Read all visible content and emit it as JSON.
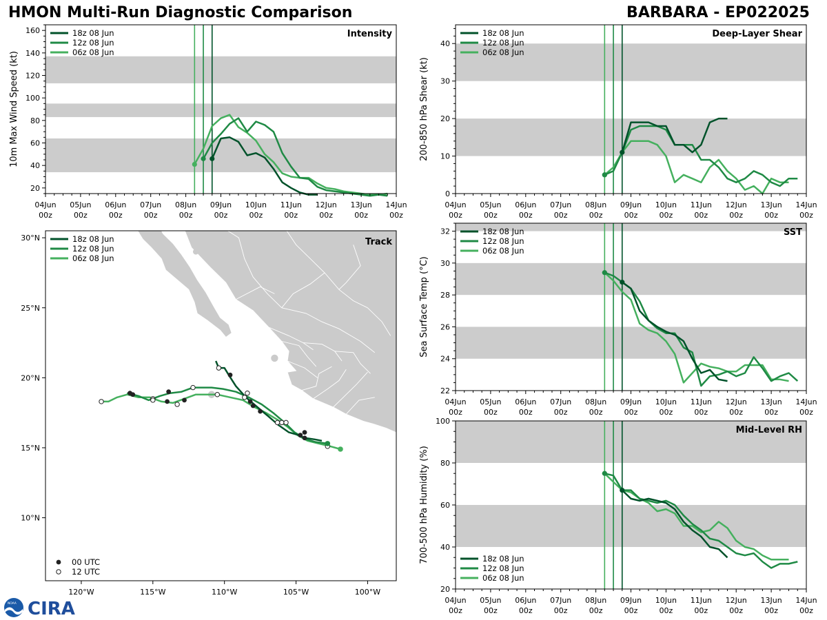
{
  "header": {
    "title": "HMON Multi-Run Diagnostic Comparison",
    "storm": "BARBARA - EP022025"
  },
  "logos": {
    "org": "CIRA",
    "emblem": "NOAA"
  },
  "colors": {
    "run18": "#00522a",
    "run12": "#1f8a45",
    "run06": "#45b05e",
    "band": "#cccccc"
  },
  "runs": [
    "18z 08 Jun",
    "12z 08 Jun",
    "06z 08 Jun"
  ],
  "time_ticks": [
    "04Jun",
    "05Jun",
    "06Jun",
    "07Jun",
    "08Jun",
    "09Jun",
    "10Jun",
    "11Jun",
    "12Jun",
    "13Jun",
    "14Jun"
  ],
  "time_sub": "00z",
  "init_lines": [
    4.25,
    4.5,
    4.75
  ],
  "chart_data": [
    {
      "id": "intensity",
      "type": "line",
      "title": "Intensity",
      "ylabel": "10m Max Wind Speed (kt)",
      "xlabel": "",
      "xlim": [
        0,
        10
      ],
      "ylim": [
        15,
        165
      ],
      "yticks": [
        20,
        40,
        60,
        80,
        100,
        120,
        140,
        160
      ],
      "bands": [
        [
          34,
          64
        ],
        [
          83,
          95
        ],
        [
          113,
          137
        ]
      ],
      "legend": "top-left",
      "series": [
        {
          "name": "18z 08 Jun",
          "x": [
            4.75,
            5.0,
            5.25,
            5.5,
            5.75,
            6.0,
            6.25,
            6.5,
            6.75,
            7.0,
            7.25,
            7.5,
            7.75
          ],
          "y": [
            46,
            64,
            65,
            61,
            49,
            51,
            47,
            37,
            25,
            20,
            16,
            14,
            14
          ]
        },
        {
          "name": "12z 08 Jun",
          "x": [
            4.5,
            4.75,
            5.0,
            5.25,
            5.5,
            5.75,
            6.0,
            6.25,
            6.5,
            6.75,
            7.0,
            7.25,
            7.5,
            7.75,
            8.0,
            8.25,
            8.5,
            8.75,
            9.0,
            9.25,
            9.5,
            9.75
          ],
          "y": [
            46,
            60,
            68,
            77,
            82,
            70,
            79,
            76,
            70,
            51,
            39,
            29,
            28,
            21,
            18,
            17,
            16,
            15,
            14,
            13,
            14,
            13
          ]
        },
        {
          "name": "06z 08 Jun",
          "x": [
            4.25,
            4.5,
            4.75,
            5.0,
            5.25,
            5.5,
            5.75,
            6.0,
            6.25,
            6.5,
            6.75,
            7.0,
            7.25,
            7.5,
            7.75,
            8.0,
            8.25,
            8.5,
            8.75,
            9.0,
            9.25,
            9.5,
            9.75
          ],
          "y": [
            41,
            55,
            75,
            82,
            85,
            74,
            69,
            62,
            50,
            43,
            33,
            30,
            29,
            29,
            24,
            20,
            19,
            17,
            16,
            15,
            14,
            14,
            15
          ]
        }
      ]
    },
    {
      "id": "shear",
      "type": "line",
      "title": "Deep-Layer Shear",
      "ylabel": "200-850 hPa Shear (kt)",
      "xlabel": "",
      "xlim": [
        0,
        10
      ],
      "ylim": [
        0,
        45
      ],
      "yticks": [
        0,
        10,
        20,
        30,
        40
      ],
      "bands": [
        [
          10,
          20
        ],
        [
          30,
          40
        ]
      ],
      "legend": "top-left",
      "series": [
        {
          "name": "18z 08 Jun",
          "x": [
            4.75,
            5.0,
            5.25,
            5.5,
            5.75,
            6.0,
            6.25,
            6.5,
            6.75,
            7.0,
            7.25,
            7.5,
            7.75
          ],
          "y": [
            11,
            19,
            19,
            19,
            18,
            18,
            13,
            13,
            11,
            13,
            19,
            20,
            20
          ]
        },
        {
          "name": "12z 08 Jun",
          "x": [
            4.25,
            4.5,
            4.75,
            5.0,
            5.25,
            5.5,
            5.75,
            6.0,
            6.25,
            6.5,
            6.75,
            7.0,
            7.25,
            7.5,
            7.75,
            8.0,
            8.25,
            8.5,
            8.75,
            9.0,
            9.25,
            9.5,
            9.75
          ],
          "y": [
            5,
            6,
            11,
            17,
            18,
            18,
            18,
            17,
            13,
            13,
            13,
            9,
            9,
            7,
            4,
            3,
            4,
            6,
            5,
            3,
            2,
            4,
            4
          ]
        },
        {
          "name": "06z 08 Jun",
          "x": [
            4.25,
            4.5,
            4.75,
            5.0,
            5.25,
            5.5,
            5.75,
            6.0,
            6.25,
            6.5,
            6.75,
            7.0,
            7.25,
            7.5,
            7.75,
            8.0,
            8.25,
            8.5,
            8.75,
            9.0,
            9.25,
            9.5
          ],
          "y": [
            5,
            7,
            11,
            14,
            14,
            14,
            13,
            10,
            3,
            5,
            4,
            3,
            7,
            9,
            6,
            4,
            1,
            2,
            0,
            4,
            3,
            3
          ]
        }
      ]
    },
    {
      "id": "sst",
      "type": "line",
      "title": "SST",
      "ylabel": "Sea Surface Temp (°C)",
      "xlabel": "",
      "xlim": [
        0,
        10
      ],
      "ylim": [
        22,
        32.5
      ],
      "yticks": [
        22,
        24,
        26,
        28,
        30,
        32
      ],
      "bands": [
        [
          24,
          26
        ],
        [
          28,
          30
        ],
        [
          32,
          32.5
        ]
      ],
      "legend": "top-left",
      "series": [
        {
          "name": "18z 08 Jun",
          "x": [
            4.75,
            5.0,
            5.25,
            5.5,
            5.75,
            6.0,
            6.25,
            6.5,
            6.75,
            7.0,
            7.25,
            7.5,
            7.75
          ],
          "y": [
            28.8,
            28.4,
            27.0,
            26.4,
            26.0,
            25.7,
            25.5,
            25.1,
            24.0,
            23.1,
            23.3,
            22.7,
            22.6
          ]
        },
        {
          "name": "12z 08 Jun",
          "x": [
            4.25,
            4.5,
            4.75,
            5.0,
            5.25,
            5.5,
            5.75,
            6.0,
            6.25,
            6.5,
            6.75,
            7.0,
            7.25,
            7.5,
            7.75,
            8.0,
            8.25,
            8.5,
            8.75,
            9.0,
            9.25,
            9.5,
            9.75
          ],
          "y": [
            29.4,
            29.2,
            28.8,
            28.4,
            27.6,
            26.4,
            25.9,
            25.6,
            25.6,
            24.7,
            24.4,
            22.3,
            22.9,
            23.0,
            23.2,
            22.9,
            23.1,
            24.1,
            23.4,
            22.6,
            22.9,
            23.1,
            22.6
          ]
        },
        {
          "name": "06z 08 Jun",
          "x": [
            4.25,
            4.5,
            4.75,
            5.0,
            5.25,
            5.5,
            5.75,
            6.0,
            6.25,
            6.5,
            6.75,
            7.0,
            7.25,
            7.5,
            7.75,
            8.0,
            8.25,
            8.5,
            8.75,
            9.0,
            9.25,
            9.5
          ],
          "y": [
            29.4,
            28.9,
            28.2,
            27.7,
            26.2,
            25.8,
            25.6,
            25.1,
            24.3,
            22.5,
            23.1,
            23.7,
            23.5,
            23.4,
            23.2,
            23.2,
            23.6,
            23.6,
            23.6,
            22.7,
            22.7,
            22.6
          ]
        }
      ]
    },
    {
      "id": "rh",
      "type": "line",
      "title": "Mid-Level RH",
      "ylabel": "700-500 hPa Humidity (%)",
      "xlabel": "",
      "xlim": [
        0,
        10
      ],
      "ylim": [
        20,
        100
      ],
      "yticks": [
        20,
        40,
        60,
        80,
        100
      ],
      "bands": [
        [
          40,
          60
        ],
        [
          80,
          100
        ]
      ],
      "legend": "bottom-left",
      "series": [
        {
          "name": "18z 08 Jun",
          "x": [
            4.75,
            5.0,
            5.25,
            5.5,
            5.75,
            6.0,
            6.25,
            6.5,
            6.75,
            7.0,
            7.25,
            7.5,
            7.75
          ],
          "y": [
            67,
            63,
            62,
            63,
            62,
            61,
            58,
            52,
            48,
            45,
            40,
            39,
            35
          ]
        },
        {
          "name": "12z 08 Jun",
          "x": [
            4.25,
            4.5,
            4.75,
            5.0,
            5.25,
            5.5,
            5.75,
            6.0,
            6.25,
            6.5,
            6.75,
            7.0,
            7.25,
            7.5,
            7.75,
            8.0,
            8.25,
            8.5,
            8.75,
            9.0,
            9.25,
            9.5,
            9.75
          ],
          "y": [
            75,
            74,
            67,
            67,
            63,
            62,
            61,
            62,
            60,
            55,
            51,
            48,
            44,
            43,
            40,
            37,
            36,
            37,
            33,
            30,
            32,
            32,
            33
          ]
        },
        {
          "name": "06z 08 Jun",
          "x": [
            4.25,
            4.5,
            4.75,
            5.0,
            5.25,
            5.5,
            5.75,
            6.0,
            6.25,
            6.5,
            6.75,
            7.0,
            7.25,
            7.5,
            7.75,
            8.0,
            8.25,
            8.5,
            8.75,
            9.0,
            9.25,
            9.5
          ],
          "y": [
            75,
            71,
            67,
            66,
            63,
            61,
            57,
            58,
            56,
            50,
            50,
            47,
            48,
            52,
            49,
            43,
            40,
            39,
            36,
            34,
            34,
            34
          ]
        }
      ]
    },
    {
      "id": "track",
      "type": "scatter",
      "title": "Track",
      "xlabel": "",
      "ylabel": "",
      "xlim": [
        -122.5,
        -98
      ],
      "ylim": [
        5.5,
        30.5
      ],
      "xticks": [
        -120,
        -115,
        -110,
        -105,
        -100
      ],
      "xtick_labels": [
        "120°W",
        "115°W",
        "110°W",
        "105°W",
        "100°W"
      ],
      "yticks": [
        10,
        15,
        20,
        25,
        30
      ],
      "ytick_labels": [
        "10°N",
        "15°N",
        "20°N",
        "25°N",
        "30°N"
      ],
      "legend": "top-left",
      "marker_legend": [
        "00 UTC",
        "12 UTC"
      ],
      "series": [
        {
          "name": "18z 08 Jun",
          "lon": [
            -110.6,
            -110.4,
            -110.0,
            -109.7,
            -109.2,
            -108.5,
            -107.7,
            -107.0,
            -106.2,
            -105.5,
            -104.8,
            -104.4,
            -103.7,
            -103.2
          ],
          "lat": [
            21.2,
            20.7,
            20.7,
            20.2,
            19.4,
            18.6,
            17.9,
            17.3,
            16.6,
            16.1,
            15.9,
            15.7,
            15.6,
            15.5
          ],
          "dot00": [
            [
              -109.6,
              20.2
            ],
            [
              -108.2,
              18.3
            ],
            [
              -104.7,
              15.9
            ],
            [
              -104.4,
              15.7
            ]
          ],
          "dot12": [
            [
              -110.4,
              20.7
            ]
          ]
        },
        {
          "name": "12z 08 Jun",
          "lon": [
            -102.8,
            -103.6,
            -104.3,
            -105.1,
            -105.8,
            -106.6,
            -107.4,
            -108.3,
            -109.2,
            -110.1,
            -110.9,
            -111.6,
            -112.2,
            -113.0,
            -113.8,
            -114.5,
            -115.3,
            -116.0,
            -116.4,
            -116.8
          ],
          "lat": [
            15.3,
            15.4,
            15.6,
            16.1,
            16.8,
            17.5,
            18.1,
            18.6,
            19.0,
            19.2,
            19.3,
            19.3,
            19.3,
            19.0,
            18.9,
            18.7,
            18.4,
            18.7,
            18.8,
            18.9
          ],
          "dot00": [
            [
              -102.8,
              15.3
            ],
            [
              -104.4,
              16.1
            ],
            [
              -107.5,
              17.6
            ],
            [
              -108.0,
              18.0
            ],
            [
              -112.8,
              18.4
            ],
            [
              -113.9,
              19.0
            ],
            [
              -116.4,
              18.8
            ],
            [
              -116.6,
              18.9
            ]
          ],
          "dot12": [
            [
              -106.0,
              16.8
            ],
            [
              -108.4,
              18.9
            ],
            [
              -112.2,
              19.3
            ],
            [
              -115.0,
              18.5
            ]
          ]
        },
        {
          "name": "06z 08 Jun",
          "lon": [
            -101.9,
            -102.6,
            -103.4,
            -104.2,
            -104.9,
            -105.6,
            -106.3,
            -107.1,
            -107.9,
            -108.7,
            -109.6,
            -110.5,
            -111.2,
            -112.0,
            -112.8,
            -113.6,
            -114.4,
            -115.2,
            -116.0,
            -116.8,
            -117.5,
            -118.1,
            -118.6
          ],
          "lat": [
            14.9,
            15.1,
            15.3,
            15.5,
            15.9,
            16.5,
            17.0,
            17.5,
            17.9,
            18.4,
            18.6,
            18.8,
            18.8,
            18.8,
            18.5,
            18.2,
            18.3,
            18.6,
            18.6,
            18.8,
            18.6,
            18.3,
            18.3
          ],
          "dot00": [
            [
              -101.9,
              14.9
            ],
            [
              -114.0,
              18.3
            ]
          ],
          "dot12": [
            [
              -102.8,
              15.1
            ],
            [
              -105.7,
              16.8
            ],
            [
              -106.3,
              16.8
            ],
            [
              -108.6,
              18.6
            ],
            [
              -110.5,
              18.8
            ],
            [
              -113.3,
              18.1
            ],
            [
              -115.0,
              18.4
            ],
            [
              -118.6,
              18.3
            ]
          ]
        }
      ]
    }
  ]
}
